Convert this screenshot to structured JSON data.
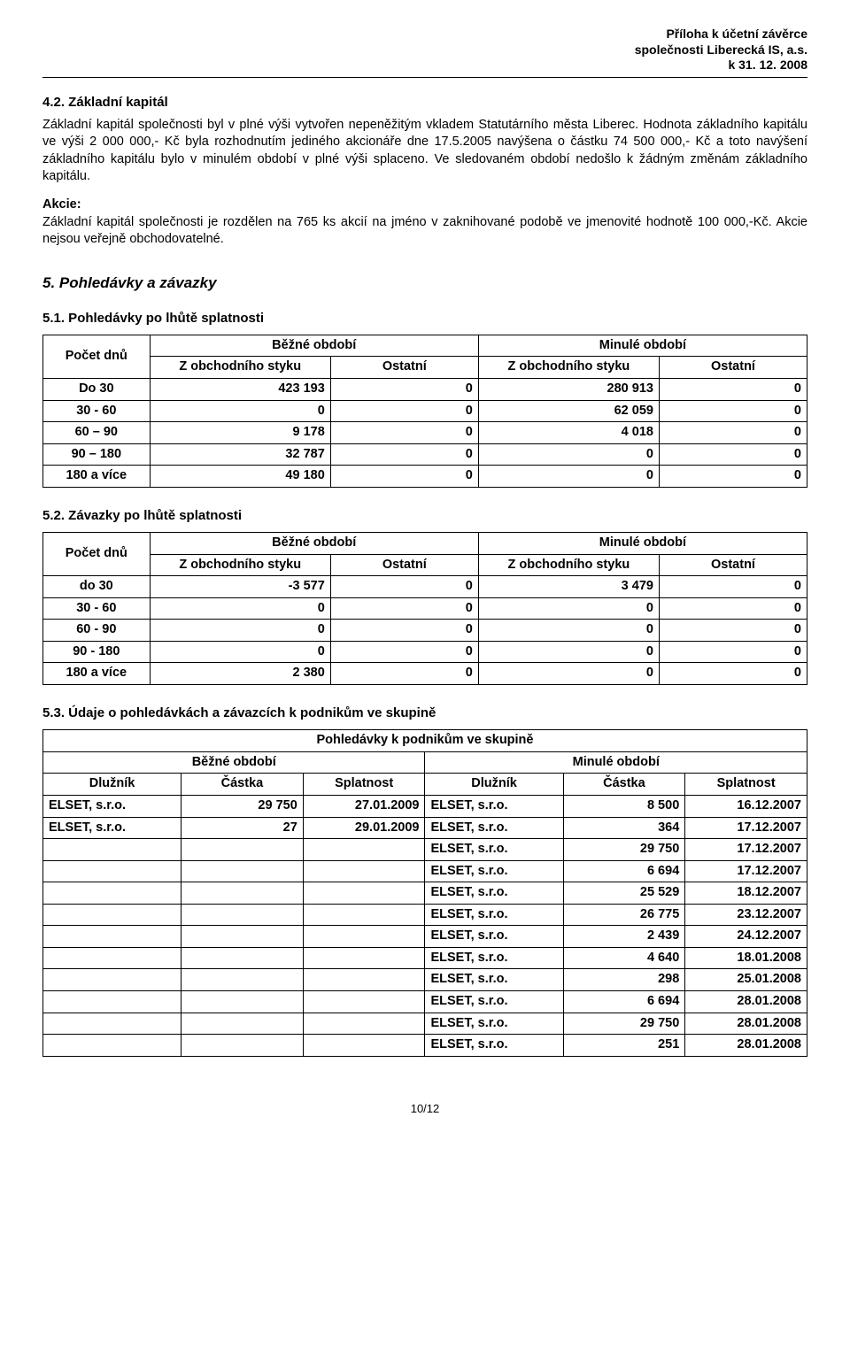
{
  "header": {
    "line1": "Příloha k účetní závěrce",
    "line2": "společnosti  Liberecká IS, a.s.",
    "line3": "k 31. 12. 2008"
  },
  "s42": {
    "title": "4.2. Základní kapitál",
    "p1": "Základní kapitál společnosti byl v plné výši vytvořen nepeněžitým vkladem Statutárního města Liberec. Hodnota základního kapitálu ve výši 2 000 000,- Kč byla  rozhodnutím  jediného akcionáře  dne 17.5.2005 navýšena o částku 74 500 000,- Kč a toto navýšení základního kapitálu bylo v minulém období v plné výši splaceno. Ve sledovaném období nedošlo k žádným změnám základního kapitálu.",
    "p2_label": "Akcie:",
    "p2": "Základní kapitál společnosti je rozdělen na 765 ks akcií na jméno v zaknihované podobě  ve jmenovité hodnotě 100 000,-Kč. Akcie nejsou veřejně obchodovatelné."
  },
  "s5": {
    "title": "5. Pohledávky a závazky"
  },
  "s51": {
    "title": "5.1. Pohledávky po lhůtě splatnosti",
    "colgroup": {
      "c1": "Počet dnů",
      "c2": "Běžné období",
      "c3": "Minulé období"
    },
    "sub": {
      "a": "Z obchodního styku",
      "b": "Ostatní"
    },
    "rows": [
      {
        "label": "Do 30",
        "v1": "423 193",
        "v2": "0",
        "v3": "280 913",
        "v4": "0"
      },
      {
        "label": "30 - 60",
        "v1": "0",
        "v2": "0",
        "v3": "62 059",
        "v4": "0"
      },
      {
        "label": "60 – 90",
        "v1": "9 178",
        "v2": "0",
        "v3": "4 018",
        "v4": "0"
      },
      {
        "label": "90 – 180",
        "v1": "32 787",
        "v2": "0",
        "v3": "0",
        "v4": "0"
      },
      {
        "label": "180 a více",
        "v1": "49 180",
        "v2": "0",
        "v3": "0",
        "v4": "0"
      }
    ]
  },
  "s52": {
    "title": "5.2. Závazky po lhůtě splatnosti",
    "rows": [
      {
        "label": "do 30",
        "v1": "-3 577",
        "v2": "0",
        "v3": "3 479",
        "v4": "0"
      },
      {
        "label": "30 - 60",
        "v1": "0",
        "v2": "0",
        "v3": "0",
        "v4": "0"
      },
      {
        "label": "60 - 90",
        "v1": "0",
        "v2": "0",
        "v3": "0",
        "v4": "0"
      },
      {
        "label": "90 - 180",
        "v1": "0",
        "v2": "0",
        "v3": "0",
        "v4": "0"
      },
      {
        "label": "180  a více",
        "v1": "2 380",
        "v2": "0",
        "v3": "0",
        "v4": "0"
      }
    ]
  },
  "s53": {
    "title": "5.3. Údaje o pohledávkách a závazcích k podnikům ve skupině",
    "tabletitle": "Pohledávky k podnikům ve skupině",
    "period_b": "Běžné období",
    "period_m": "Minulé období",
    "cols": {
      "d": "Dlužník",
      "c": "Částka",
      "s": "Splatnost"
    },
    "rows": [
      {
        "d1": "ELSET, s.r.o.",
        "c1": "29 750",
        "s1": "27.01.2009",
        "d2": "ELSET, s.r.o.",
        "c2": "8 500",
        "s2": "16.12.2007"
      },
      {
        "d1": "ELSET, s.r.o.",
        "c1": "27",
        "s1": "29.01.2009",
        "d2": "ELSET, s.r.o.",
        "c2": "364",
        "s2": "17.12.2007"
      },
      {
        "d1": "",
        "c1": "",
        "s1": "",
        "d2": "ELSET, s.r.o.",
        "c2": "29 750",
        "s2": "17.12.2007"
      },
      {
        "d1": "",
        "c1": "",
        "s1": "",
        "d2": "ELSET, s.r.o.",
        "c2": "6 694",
        "s2": "17.12.2007"
      },
      {
        "d1": "",
        "c1": "",
        "s1": "",
        "d2": "ELSET, s.r.o.",
        "c2": "25 529",
        "s2": "18.12.2007"
      },
      {
        "d1": "",
        "c1": "",
        "s1": "",
        "d2": "ELSET, s.r.o.",
        "c2": "26 775",
        "s2": "23.12.2007"
      },
      {
        "d1": "",
        "c1": "",
        "s1": "",
        "d2": "ELSET, s.r.o.",
        "c2": "2 439",
        "s2": "24.12.2007"
      },
      {
        "d1": "",
        "c1": "",
        "s1": "",
        "d2": "ELSET, s.r.o.",
        "c2": "4 640",
        "s2": "18.01.2008"
      },
      {
        "d1": "",
        "c1": "",
        "s1": "",
        "d2": "ELSET, s.r.o.",
        "c2": "298",
        "s2": "25.01.2008"
      },
      {
        "d1": "",
        "c1": "",
        "s1": "",
        "d2": "ELSET, s.r.o.",
        "c2": "6 694",
        "s2": "28.01.2008"
      },
      {
        "d1": "",
        "c1": "",
        "s1": "",
        "d2": "ELSET, s.r.o.",
        "c2": "29 750",
        "s2": "28.01.2008"
      },
      {
        "d1": "",
        "c1": "",
        "s1": "",
        "d2": "ELSET, s.r.o.",
        "c2": "251",
        "s2": "28.01.2008"
      }
    ]
  },
  "footer": "10/12"
}
